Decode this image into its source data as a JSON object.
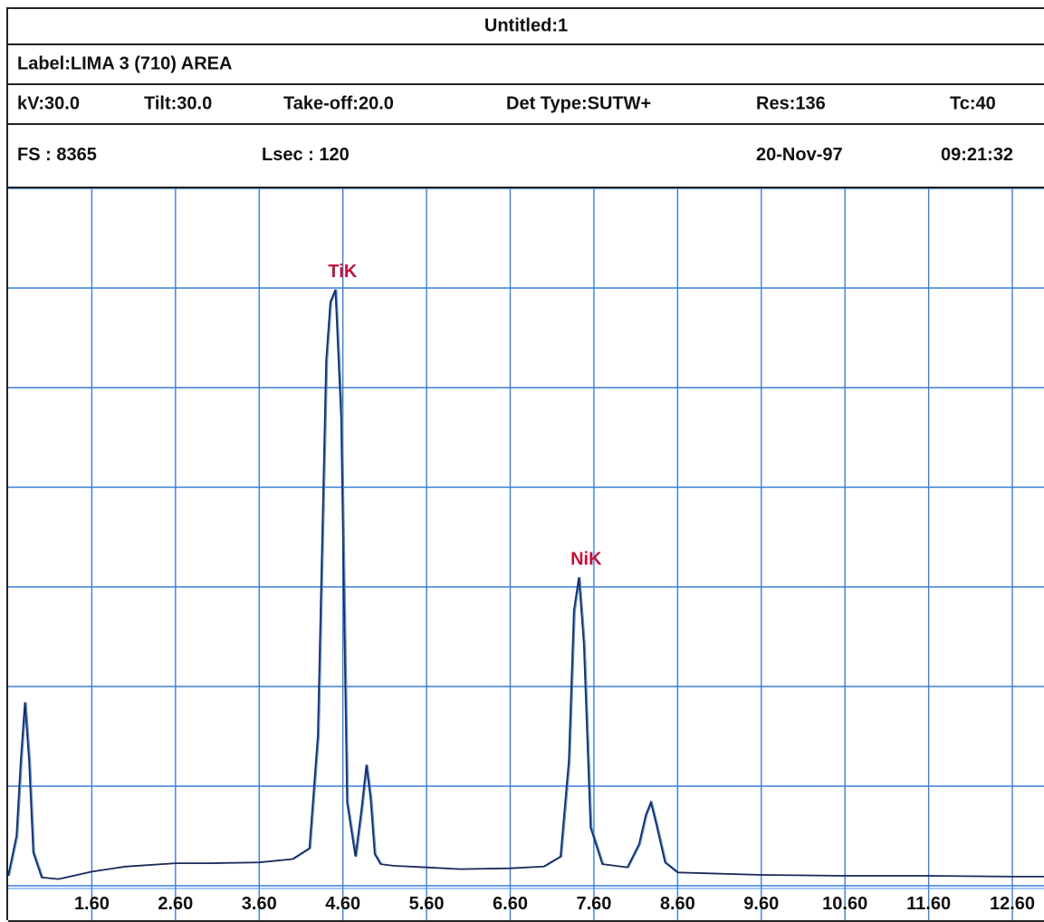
{
  "header": {
    "title": "Untitled:1",
    "label": "Label:LIMA 3 (710) AREA",
    "kv": "kV:30.0",
    "tilt": "Tilt:30.0",
    "takeoff": "Take-off:20.0",
    "det_type": "Det Type:SUTW+",
    "res": "Res:136",
    "tc": "Tc:40",
    "fs": "FS : 8365",
    "lsec": "Lsec : 120",
    "date": "20-Nov-97",
    "time": "09:21:32"
  },
  "colors": {
    "grid": "#3a7fd6",
    "spectrum": "#1b2a5a",
    "overlay": "#4a8fe0",
    "peak_label": "#c0143c"
  },
  "chart_data": {
    "type": "line",
    "title": "",
    "xlabel": "",
    "ylabel": "",
    "xlim": [
      0.6,
      13.0
    ],
    "ylim": [
      0,
      8365
    ],
    "grid": true,
    "x_ticks": [
      "1.60",
      "2.60",
      "3.60",
      "4.60",
      "5.60",
      "6.60",
      "7.60",
      "8.60",
      "9.60",
      "10.60",
      "11.60",
      "12.60"
    ],
    "series": [
      {
        "x": [
          0.6,
          0.7,
          0.75,
          0.8,
          0.85,
          0.9,
          1.0,
          1.2,
          1.6,
          2.0,
          2.6,
          3.0,
          3.6,
          4.0,
          4.2,
          4.3,
          4.4,
          4.45,
          4.51,
          4.58,
          4.65,
          4.75,
          4.82,
          4.88,
          4.93,
          4.98,
          5.05,
          5.2,
          5.6,
          6.0,
          6.6,
          7.0,
          7.2,
          7.3,
          7.36,
          7.42,
          7.48,
          7.56,
          7.7,
          8.0,
          8.14,
          8.22,
          8.28,
          8.34,
          8.45,
          8.6,
          9.6,
          10.6,
          11.6,
          12.6,
          13.0
        ],
        "y": [
          120,
          600,
          1500,
          2200,
          1500,
          400,
          100,
          80,
          170,
          230,
          270,
          270,
          280,
          320,
          450,
          1800,
          6300,
          7000,
          7150,
          5600,
          1000,
          350,
          900,
          1450,
          1050,
          380,
          260,
          240,
          220,
          200,
          210,
          230,
          350,
          1500,
          3300,
          3700,
          2900,
          700,
          260,
          220,
          500,
          850,
          1000,
          760,
          280,
          160,
          130,
          120,
          120,
          110,
          110
        ]
      }
    ],
    "annotations": [
      {
        "text": "TiK",
        "x": 4.51,
        "y": 7150
      },
      {
        "text": "NiK",
        "x": 7.42,
        "y": 3700
      }
    ]
  }
}
